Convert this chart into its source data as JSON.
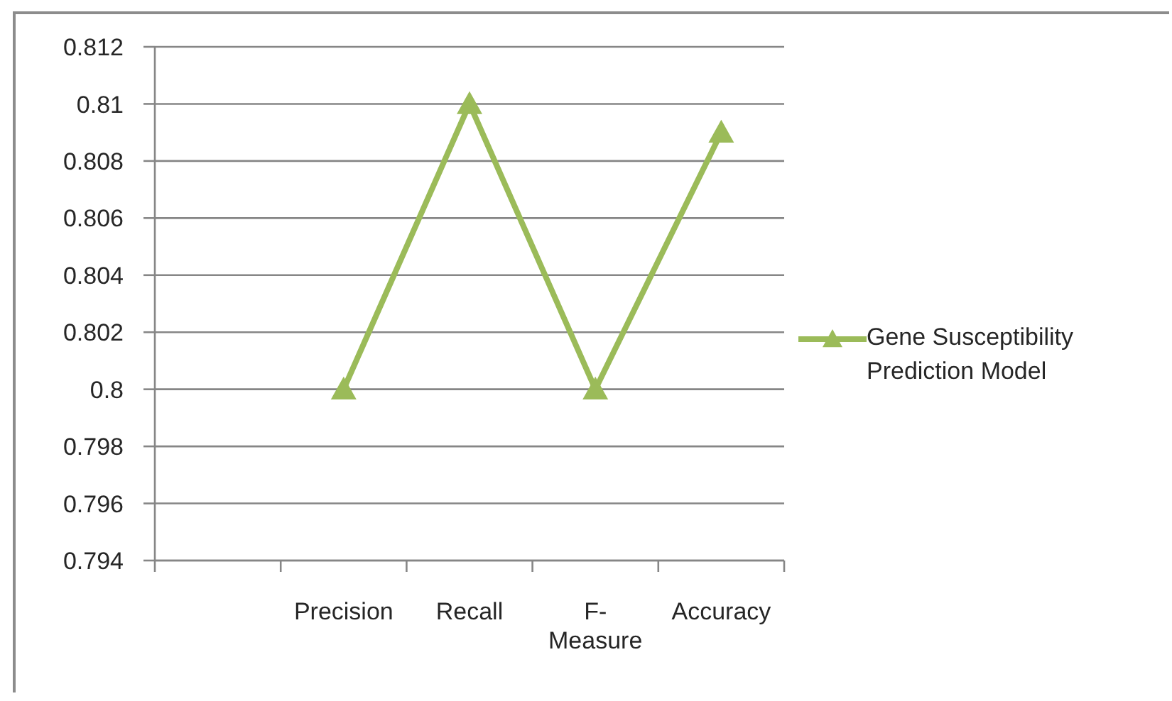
{
  "chart_data": {
    "type": "line",
    "categories": [
      null,
      "Precision",
      "Recall",
      "F-Measure",
      "Accuracy"
    ],
    "series": [
      {
        "name": "Gene Susceptibility Prediction Model",
        "color": "#9bbb59",
        "values": [
          null,
          0.8,
          0.81,
          0.8,
          0.809
        ]
      }
    ],
    "ylim": [
      0.794,
      0.812
    ],
    "yticks": [
      0.794,
      0.796,
      0.798,
      0.8,
      0.802,
      0.804,
      0.806,
      0.808,
      0.81,
      0.812
    ],
    "grid": "y",
    "legend": "right",
    "marker": "triangle",
    "line_style": "solid"
  }
}
